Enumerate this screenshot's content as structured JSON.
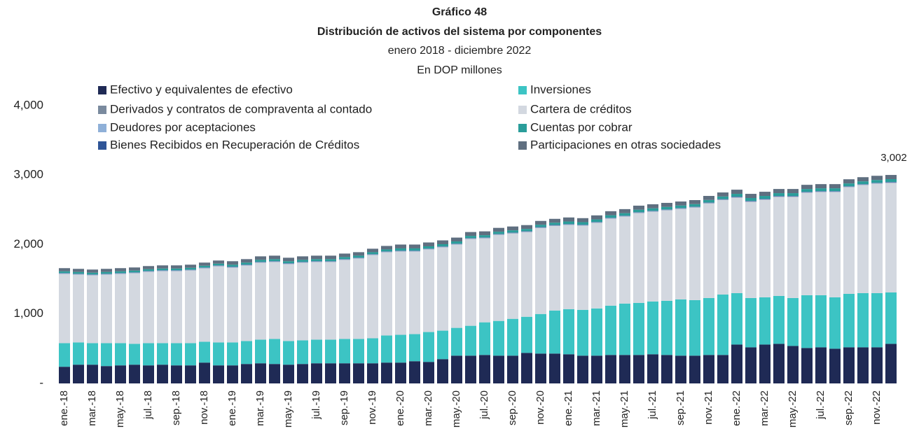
{
  "chart_data": {
    "type": "stacked-bar",
    "title": "Gráfico 48",
    "subtitle": "Distribución de activos del sistema por componentes",
    "period": "enero 2018 - diciembre 2022",
    "unit": "En DOP millones",
    "annotation": "3,002",
    "categories": [
      "ene.-18",
      null,
      "mar.-18",
      null,
      "may.-18",
      null,
      "jul.-18",
      null,
      "sep.-18",
      null,
      "nov.-18",
      null,
      "ene.-19",
      null,
      "mar.-19",
      null,
      "may.-19",
      null,
      "jul.-19",
      null,
      "sep.-19",
      null,
      "nov.-19",
      null,
      "ene.-20",
      null,
      "mar.-20",
      null,
      "may.-20",
      null,
      "jul.-20",
      null,
      "sep.-20",
      null,
      "nov.-20",
      null,
      "ene.-21",
      null,
      "mar.-21",
      null,
      "may.-21",
      null,
      "jul.-21",
      null,
      "sep.-21",
      null,
      "nov.-21",
      null,
      "ene.-22",
      null,
      "mar.-22",
      null,
      "may.-22",
      null,
      "jul.-22",
      null,
      "sep.-22",
      null,
      "nov.-22",
      null
    ],
    "ylim": [
      0,
      4000
    ],
    "yticks": [
      {
        "value": 0,
        "label": "-"
      },
      {
        "value": 1000,
        "label": "1,000"
      },
      {
        "value": 2000,
        "label": "2,000"
      },
      {
        "value": 3000,
        "label": "3,000"
      },
      {
        "value": 4000,
        "label": "4,000"
      }
    ],
    "grid": false,
    "series": [
      {
        "name": "Efectivo y equivalentes de efectivo",
        "color": "#1f2a55",
        "values": [
          240,
          270,
          270,
          250,
          260,
          270,
          260,
          270,
          260,
          260,
          300,
          260,
          260,
          280,
          290,
          280,
          270,
          280,
          290,
          290,
          290,
          290,
          290,
          300,
          300,
          320,
          310,
          350,
          400,
          400,
          410,
          400,
          400,
          440,
          430,
          430,
          420,
          400,
          400,
          410,
          410,
          410,
          420,
          410,
          400,
          400,
          410,
          410,
          560,
          520,
          560,
          570,
          540,
          510,
          520,
          500,
          520,
          520,
          520,
          570
        ]
      },
      {
        "name": "Inversiones",
        "color": "#3cc4c4",
        "values": [
          340,
          320,
          310,
          330,
          320,
          300,
          320,
          310,
          320,
          320,
          300,
          330,
          330,
          330,
          340,
          360,
          340,
          340,
          340,
          340,
          350,
          350,
          360,
          390,
          400,
          390,
          430,
          410,
          400,
          430,
          470,
          500,
          530,
          520,
          570,
          620,
          650,
          660,
          680,
          710,
          740,
          750,
          760,
          780,
          810,
          800,
          820,
          870,
          740,
          710,
          680,
          690,
          690,
          760,
          750,
          740,
          770,
          780,
          780,
          740
        ]
      },
      {
        "name": "Cartera de créditos",
        "color": "#d3d8e0",
        "values": [
          995,
          975,
          975,
          985,
          995,
          1015,
          1025,
          1035,
          1035,
          1045,
          1055,
          1095,
          1077,
          1087,
          1107,
          1107,
          1107,
          1117,
          1117,
          1117,
          1137,
          1157,
          1197,
          1197,
          1198,
          1188,
          1188,
          1198,
          1198,
          1248,
          1208,
          1238,
          1228,
          1218,
          1238,
          1218,
          1211,
          1211,
          1231,
          1251,
          1251,
          1291,
          1291,
          1301,
          1301,
          1331,
          1361,
          1361,
          1375,
          1385,
          1405,
          1425,
          1455,
          1475,
          1485,
          1515,
          1535,
          1555,
          1575,
          1577
        ]
      },
      {
        "name": "Derivados y contratos de compraventa al contado",
        "color": "#7a8a9e",
        "values": [
          4,
          4,
          4,
          4,
          4,
          4,
          4,
          4,
          4,
          4,
          4,
          4,
          4,
          4,
          4,
          4,
          4,
          4,
          4,
          4,
          4,
          4,
          4,
          4,
          4,
          4,
          4,
          4,
          4,
          4,
          4,
          4,
          4,
          4,
          4,
          4,
          4,
          4,
          4,
          4,
          4,
          4,
          4,
          4,
          4,
          4,
          4,
          4,
          4,
          4,
          4,
          4,
          4,
          4,
          4,
          4,
          4,
          4,
          4,
          4
        ]
      },
      {
        "name": "Deudores por aceptaciones",
        "color": "#8fb0d8",
        "values": [
          6,
          6,
          6,
          6,
          6,
          6,
          6,
          6,
          6,
          6,
          6,
          6,
          6,
          6,
          6,
          6,
          6,
          6,
          6,
          6,
          6,
          6,
          6,
          6,
          6,
          6,
          6,
          6,
          6,
          6,
          6,
          6,
          6,
          6,
          6,
          6,
          6,
          6,
          6,
          6,
          6,
          6,
          6,
          6,
          6,
          6,
          6,
          6,
          6,
          6,
          6,
          6,
          6,
          6,
          6,
          6,
          6,
          6,
          6,
          6
        ]
      },
      {
        "name": "Bienes Recibidos en Recuperación de Créditos",
        "color": "#2f5597",
        "values": [
          5,
          5,
          5,
          5,
          5,
          5,
          5,
          5,
          5,
          5,
          5,
          5,
          5,
          5,
          5,
          5,
          5,
          5,
          5,
          5,
          5,
          5,
          5,
          5,
          5,
          5,
          5,
          5,
          5,
          5,
          5,
          5,
          5,
          5,
          5,
          5,
          5,
          5,
          5,
          5,
          5,
          5,
          5,
          5,
          5,
          5,
          5,
          5,
          5,
          5,
          5,
          5,
          5,
          5,
          5,
          5,
          5,
          5,
          5,
          5
        ]
      },
      {
        "name": "Cuentas por cobrar",
        "color": "#2a9d9a",
        "values": [
          25,
          25,
          25,
          25,
          25,
          25,
          25,
          25,
          25,
          25,
          25,
          25,
          28,
          28,
          28,
          28,
          28,
          28,
          28,
          28,
          28,
          28,
          28,
          28,
          32,
          32,
          32,
          32,
          32,
          32,
          32,
          32,
          32,
          32,
          32,
          32,
          36,
          36,
          36,
          36,
          36,
          36,
          36,
          36,
          36,
          36,
          36,
          36,
          40,
          40,
          40,
          40,
          40,
          40,
          40,
          40,
          40,
          40,
          40,
          40
        ]
      },
      {
        "name": "Participaciones en otras sociedades",
        "color": "#5f6f80",
        "values": [
          45,
          45,
          45,
          45,
          45,
          45,
          45,
          45,
          45,
          45,
          45,
          45,
          50,
          50,
          50,
          50,
          50,
          50,
          50,
          50,
          50,
          50,
          50,
          50,
          55,
          55,
          55,
          55,
          55,
          55,
          55,
          55,
          55,
          55,
          55,
          55,
          58,
          58,
          58,
          58,
          58,
          58,
          58,
          58,
          58,
          58,
          58,
          58,
          60,
          60,
          60,
          60,
          60,
          60,
          60,
          60,
          60,
          60,
          60,
          60
        ]
      }
    ]
  }
}
